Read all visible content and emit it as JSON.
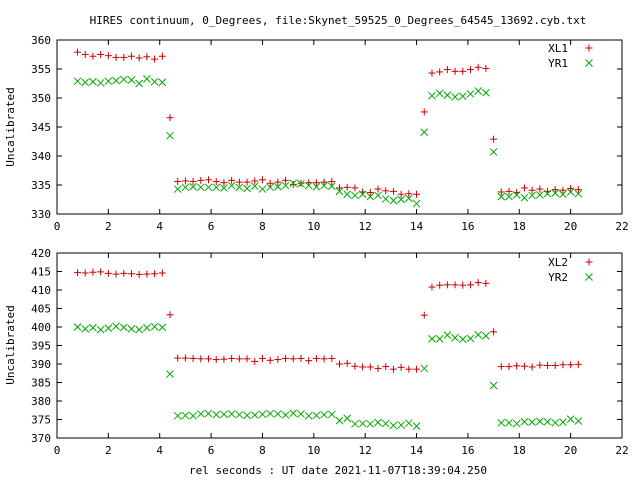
{
  "chart_data": [
    {
      "type": "scatter",
      "title": "HIRES continuum, 0_Degrees, file:Skynet_59525_0_Degrees_64545_13692.cyb.txt",
      "xlabel": "",
      "ylabel": "Uncalibrated",
      "xlim": [
        0,
        22
      ],
      "ylim": [
        330,
        360
      ],
      "xticks": [
        0,
        2,
        4,
        6,
        8,
        10,
        12,
        14,
        16,
        18,
        20,
        22
      ],
      "yticks": [
        330,
        335,
        340,
        345,
        350,
        355,
        360
      ],
      "grid": false,
      "legend_position": "top-right",
      "series": [
        {
          "name": "XL1",
          "marker": "plus",
          "color": "#cc0000",
          "points": [
            [
              0.8,
              357.9
            ],
            [
              1.1,
              357.5
            ],
            [
              1.4,
              357.2
            ],
            [
              1.7,
              357.5
            ],
            [
              2.0,
              357.3
            ],
            [
              2.3,
              357.0
            ],
            [
              2.6,
              357.0
            ],
            [
              2.9,
              357.2
            ],
            [
              3.2,
              356.9
            ],
            [
              3.5,
              357.1
            ],
            [
              3.8,
              356.7
            ],
            [
              4.1,
              357.2
            ],
            [
              4.4,
              346.6
            ],
            [
              4.7,
              335.6
            ],
            [
              5.0,
              335.7
            ],
            [
              5.3,
              335.6
            ],
            [
              5.6,
              335.8
            ],
            [
              5.9,
              335.9
            ],
            [
              6.2,
              335.6
            ],
            [
              6.5,
              335.4
            ],
            [
              6.8,
              335.8
            ],
            [
              7.1,
              335.5
            ],
            [
              7.4,
              335.5
            ],
            [
              7.7,
              335.7
            ],
            [
              8.0,
              335.9
            ],
            [
              8.3,
              335.3
            ],
            [
              8.6,
              335.5
            ],
            [
              8.9,
              335.8
            ],
            [
              9.2,
              335.1
            ],
            [
              9.5,
              335.3
            ],
            [
              9.8,
              335.4
            ],
            [
              10.1,
              335.4
            ],
            [
              10.4,
              335.5
            ],
            [
              10.7,
              335.6
            ],
            [
              11.0,
              334.5
            ],
            [
              11.3,
              334.6
            ],
            [
              11.6,
              334.5
            ],
            [
              11.9,
              333.8
            ],
            [
              12.2,
              333.7
            ],
            [
              12.5,
              334.3
            ],
            [
              12.8,
              334.0
            ],
            [
              13.1,
              333.9
            ],
            [
              13.4,
              333.4
            ],
            [
              13.7,
              333.5
            ],
            [
              14.0,
              333.4
            ],
            [
              14.3,
              347.6
            ],
            [
              14.6,
              354.3
            ],
            [
              14.9,
              354.5
            ],
            [
              15.2,
              354.9
            ],
            [
              15.5,
              354.6
            ],
            [
              15.8,
              354.6
            ],
            [
              16.1,
              354.9
            ],
            [
              16.4,
              355.3
            ],
            [
              16.7,
              355.1
            ],
            [
              17.0,
              342.9
            ],
            [
              17.3,
              333.8
            ],
            [
              17.6,
              333.9
            ],
            [
              17.9,
              333.7
            ],
            [
              18.2,
              334.5
            ],
            [
              18.5,
              334.1
            ],
            [
              18.8,
              334.3
            ],
            [
              19.1,
              333.9
            ],
            [
              19.4,
              334.2
            ],
            [
              19.7,
              334.1
            ],
            [
              20.0,
              334.4
            ],
            [
              20.3,
              334.2
            ]
          ]
        },
        {
          "name": "YR1",
          "marker": "cross",
          "color": "#00aa00",
          "points": [
            [
              0.8,
              352.9
            ],
            [
              1.1,
              352.7
            ],
            [
              1.4,
              352.8
            ],
            [
              1.7,
              352.6
            ],
            [
              2.0,
              352.9
            ],
            [
              2.3,
              353.0
            ],
            [
              2.6,
              353.2
            ],
            [
              2.9,
              353.1
            ],
            [
              3.2,
              352.5
            ],
            [
              3.5,
              353.3
            ],
            [
              3.8,
              352.8
            ],
            [
              4.1,
              352.7
            ],
            [
              4.4,
              343.5
            ],
            [
              4.7,
              334.3
            ],
            [
              5.0,
              334.6
            ],
            [
              5.3,
              334.7
            ],
            [
              5.6,
              334.6
            ],
            [
              5.9,
              334.6
            ],
            [
              6.2,
              334.6
            ],
            [
              6.5,
              334.5
            ],
            [
              6.8,
              334.9
            ],
            [
              7.1,
              334.6
            ],
            [
              7.4,
              334.4
            ],
            [
              7.7,
              334.8
            ],
            [
              8.0,
              334.3
            ],
            [
              8.3,
              334.6
            ],
            [
              8.6,
              334.7
            ],
            [
              8.9,
              334.9
            ],
            [
              9.2,
              335.3
            ],
            [
              9.5,
              335.2
            ],
            [
              9.8,
              334.9
            ],
            [
              10.1,
              334.7
            ],
            [
              10.4,
              334.9
            ],
            [
              10.7,
              334.8
            ],
            [
              11.0,
              333.9
            ],
            [
              11.3,
              333.4
            ],
            [
              11.6,
              333.2
            ],
            [
              11.9,
              333.4
            ],
            [
              12.2,
              333.0
            ],
            [
              12.5,
              333.2
            ],
            [
              12.8,
              332.6
            ],
            [
              13.1,
              332.3
            ],
            [
              13.4,
              332.5
            ],
            [
              13.7,
              332.7
            ],
            [
              14.0,
              331.8
            ],
            [
              14.3,
              344.1
            ],
            [
              14.6,
              350.4
            ],
            [
              14.9,
              350.8
            ],
            [
              15.2,
              350.5
            ],
            [
              15.5,
              350.2
            ],
            [
              15.8,
              350.3
            ],
            [
              16.1,
              350.7
            ],
            [
              16.4,
              351.2
            ],
            [
              16.7,
              350.9
            ],
            [
              17.0,
              340.7
            ],
            [
              17.3,
              333.0
            ],
            [
              17.6,
              333.0
            ],
            [
              17.9,
              333.3
            ],
            [
              18.2,
              332.8
            ],
            [
              18.5,
              333.2
            ],
            [
              18.8,
              333.3
            ],
            [
              19.1,
              333.5
            ],
            [
              19.4,
              333.6
            ],
            [
              19.7,
              333.4
            ],
            [
              20.0,
              333.8
            ],
            [
              20.3,
              333.5
            ]
          ]
        }
      ]
    },
    {
      "type": "scatter",
      "title": "",
      "xlabel": "rel seconds : UT date 2021-11-07T18:39:04.250",
      "ylabel": "Uncalibrated",
      "xlim": [
        0,
        22
      ],
      "ylim": [
        370,
        420
      ],
      "xticks": [
        0,
        2,
        4,
        6,
        8,
        10,
        12,
        14,
        16,
        18,
        20,
        22
      ],
      "yticks": [
        370,
        375,
        380,
        385,
        390,
        395,
        400,
        405,
        410,
        415,
        420
      ],
      "grid": false,
      "legend_position": "top-right",
      "series": [
        {
          "name": "XL2",
          "marker": "plus",
          "color": "#cc0000",
          "points": [
            [
              0.8,
              414.7
            ],
            [
              1.1,
              414.6
            ],
            [
              1.4,
              414.8
            ],
            [
              1.7,
              414.9
            ],
            [
              2.0,
              414.5
            ],
            [
              2.3,
              414.3
            ],
            [
              2.6,
              414.5
            ],
            [
              2.9,
              414.4
            ],
            [
              3.2,
              414.2
            ],
            [
              3.5,
              414.3
            ],
            [
              3.8,
              414.4
            ],
            [
              4.1,
              414.6
            ],
            [
              4.4,
              403.3
            ],
            [
              4.7,
              391.6
            ],
            [
              5.0,
              391.6
            ],
            [
              5.3,
              391.5
            ],
            [
              5.6,
              391.4
            ],
            [
              5.9,
              391.4
            ],
            [
              6.2,
              391.2
            ],
            [
              6.5,
              391.3
            ],
            [
              6.8,
              391.5
            ],
            [
              7.1,
              391.4
            ],
            [
              7.4,
              391.4
            ],
            [
              7.7,
              390.7
            ],
            [
              8.0,
              391.5
            ],
            [
              8.3,
              391.0
            ],
            [
              8.6,
              391.2
            ],
            [
              8.9,
              391.5
            ],
            [
              9.2,
              391.4
            ],
            [
              9.5,
              391.5
            ],
            [
              9.8,
              390.9
            ],
            [
              10.1,
              391.5
            ],
            [
              10.4,
              391.4
            ],
            [
              10.7,
              391.5
            ],
            [
              11.0,
              390.0
            ],
            [
              11.3,
              390.2
            ],
            [
              11.6,
              389.4
            ],
            [
              11.9,
              389.2
            ],
            [
              12.2,
              389.2
            ],
            [
              12.5,
              388.8
            ],
            [
              12.8,
              389.3
            ],
            [
              13.1,
              388.6
            ],
            [
              13.4,
              389.1
            ],
            [
              13.7,
              388.6
            ],
            [
              14.0,
              388.6
            ],
            [
              14.3,
              403.2
            ],
            [
              14.6,
              410.8
            ],
            [
              14.9,
              411.3
            ],
            [
              15.2,
              411.4
            ],
            [
              15.5,
              411.4
            ],
            [
              15.8,
              411.3
            ],
            [
              16.1,
              411.4
            ],
            [
              16.4,
              412.0
            ],
            [
              16.7,
              411.8
            ],
            [
              17.0,
              398.7
            ],
            [
              17.3,
              389.3
            ],
            [
              17.6,
              389.3
            ],
            [
              17.9,
              389.5
            ],
            [
              18.2,
              389.4
            ],
            [
              18.5,
              389.2
            ],
            [
              18.8,
              389.7
            ],
            [
              19.1,
              389.6
            ],
            [
              19.4,
              389.6
            ],
            [
              19.7,
              389.8
            ],
            [
              20.0,
              389.8
            ],
            [
              20.3,
              389.9
            ]
          ]
        },
        {
          "name": "YR2",
          "marker": "cross",
          "color": "#00aa00",
          "points": [
            [
              0.8,
              400.0
            ],
            [
              1.1,
              399.5
            ],
            [
              1.4,
              399.8
            ],
            [
              1.7,
              399.3
            ],
            [
              2.0,
              399.7
            ],
            [
              2.3,
              400.2
            ],
            [
              2.6,
              399.9
            ],
            [
              2.9,
              399.5
            ],
            [
              3.2,
              399.3
            ],
            [
              3.5,
              399.8
            ],
            [
              3.8,
              400.1
            ],
            [
              4.1,
              399.9
            ],
            [
              4.4,
              387.3
            ],
            [
              4.7,
              376.0
            ],
            [
              5.0,
              376.1
            ],
            [
              5.3,
              376.0
            ],
            [
              5.6,
              376.5
            ],
            [
              5.9,
              376.6
            ],
            [
              6.2,
              376.3
            ],
            [
              6.5,
              376.4
            ],
            [
              6.8,
              376.5
            ],
            [
              7.1,
              376.3
            ],
            [
              7.4,
              376.1
            ],
            [
              7.7,
              376.2
            ],
            [
              8.0,
              376.4
            ],
            [
              8.3,
              376.6
            ],
            [
              8.6,
              376.5
            ],
            [
              8.9,
              376.2
            ],
            [
              9.2,
              376.7
            ],
            [
              9.5,
              376.5
            ],
            [
              9.8,
              376.0
            ],
            [
              10.1,
              376.1
            ],
            [
              10.4,
              376.3
            ],
            [
              10.7,
              376.4
            ],
            [
              11.0,
              374.7
            ],
            [
              11.3,
              375.3
            ],
            [
              11.6,
              373.8
            ],
            [
              11.9,
              373.9
            ],
            [
              12.2,
              373.8
            ],
            [
              12.5,
              374.2
            ],
            [
              12.8,
              373.9
            ],
            [
              13.1,
              373.4
            ],
            [
              13.4,
              373.5
            ],
            [
              13.7,
              374.0
            ],
            [
              14.0,
              373.2
            ],
            [
              14.3,
              388.8
            ],
            [
              14.6,
              396.8
            ],
            [
              14.9,
              396.8
            ],
            [
              15.2,
              397.8
            ],
            [
              15.5,
              397.1
            ],
            [
              15.8,
              396.7
            ],
            [
              16.1,
              396.9
            ],
            [
              16.4,
              397.9
            ],
            [
              16.7,
              397.6
            ],
            [
              17.0,
              384.2
            ],
            [
              17.3,
              374.1
            ],
            [
              17.6,
              374.1
            ],
            [
              17.9,
              373.9
            ],
            [
              18.2,
              374.4
            ],
            [
              18.5,
              374.3
            ],
            [
              18.8,
              374.5
            ],
            [
              19.1,
              374.4
            ],
            [
              19.4,
              374.1
            ],
            [
              19.7,
              374.3
            ],
            [
              20.0,
              375.1
            ],
            [
              20.3,
              374.6
            ]
          ]
        }
      ]
    }
  ]
}
